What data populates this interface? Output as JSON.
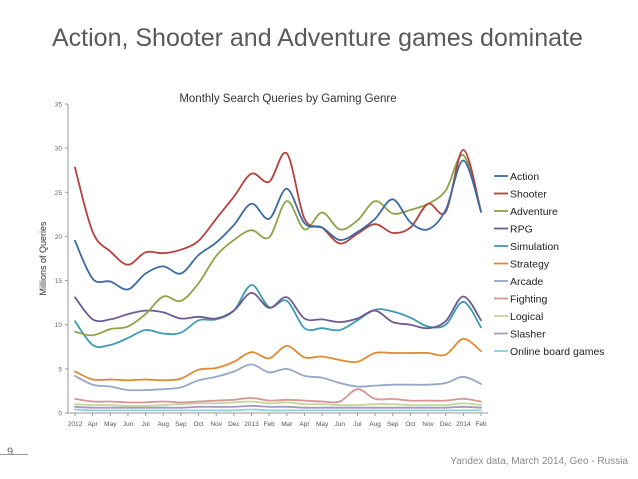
{
  "slide": {
    "title": "Action, Shooter and Adventure games dominate",
    "page_number": "9",
    "source_note": "Yandex data, March 2014, Geo - Russia"
  },
  "chart_data": {
    "type": "line",
    "title": "Monthly Search Queries by Gaming Genre",
    "xlabel": "",
    "ylabel": "Millions of Queries",
    "ylim": [
      0,
      35
    ],
    "yticks": [
      0,
      5,
      10,
      15,
      20,
      25,
      30,
      35
    ],
    "grid": false,
    "legend_position": "right",
    "x_tick_labels": [
      "2012",
      "Apr",
      "May",
      "Jun",
      "Jul",
      "Aug",
      "Sep",
      "Oct",
      "Nov",
      "Dec",
      "2013",
      "Feb",
      "Mar",
      "Apr",
      "May",
      "Jun",
      "Jul",
      "Aug",
      "Sep",
      "Oct",
      "Nov",
      "Dec",
      "2014",
      "Feb"
    ],
    "series": [
      {
        "name": "Action",
        "color": "#3a6ba3",
        "values": [
          19.5,
          15.2,
          14.9,
          14.0,
          15.8,
          16.6,
          15.8,
          17.9,
          19.3,
          21.3,
          23.7,
          22.0,
          25.4,
          21.5,
          21.0,
          19.6,
          20.5,
          22.0,
          24.2,
          21.6,
          20.8,
          23.0,
          28.6,
          22.8
        ]
      },
      {
        "name": "Shooter",
        "color": "#b8403c",
        "values": [
          27.8,
          20.5,
          18.3,
          16.8,
          18.2,
          18.1,
          18.5,
          19.5,
          22.0,
          24.5,
          27.1,
          26.2,
          29.4,
          22.0,
          21.0,
          19.2,
          20.3,
          21.4,
          20.4,
          21.0,
          23.7,
          22.8,
          29.8,
          22.8
        ]
      },
      {
        "name": "Adventure",
        "color": "#8ea44a",
        "values": [
          9.2,
          8.8,
          9.5,
          9.8,
          11.2,
          13.2,
          12.7,
          14.7,
          17.8,
          19.6,
          20.7,
          19.9,
          24.0,
          20.8,
          22.7,
          20.8,
          21.8,
          24.0,
          22.6,
          23.0,
          23.7,
          25.2,
          29.2,
          22.8
        ]
      },
      {
        "name": "RPG",
        "color": "#6e5a93",
        "values": [
          13.1,
          10.6,
          10.6,
          11.2,
          11.6,
          11.4,
          10.7,
          10.9,
          10.7,
          11.6,
          13.6,
          11.9,
          13.1,
          10.7,
          10.6,
          10.3,
          10.7,
          11.6,
          10.3,
          10.0,
          9.6,
          10.4,
          13.2,
          10.5
        ]
      },
      {
        "name": "Simulation",
        "color": "#3f9bb0",
        "values": [
          10.4,
          7.7,
          7.7,
          8.5,
          9.4,
          9.0,
          9.1,
          10.5,
          10.6,
          11.6,
          14.5,
          12.0,
          12.7,
          9.6,
          9.6,
          9.4,
          10.5,
          11.7,
          11.5,
          10.8,
          9.8,
          10.0,
          12.6,
          9.7
        ]
      },
      {
        "name": "Strategy",
        "color": "#de8b2f",
        "values": [
          4.7,
          3.8,
          3.8,
          3.7,
          3.8,
          3.7,
          3.9,
          4.9,
          5.1,
          5.8,
          6.9,
          6.2,
          7.6,
          6.3,
          6.4,
          6.0,
          5.8,
          6.8,
          6.8,
          6.8,
          6.8,
          6.6,
          8.4,
          7.0
        ]
      },
      {
        "name": "Arcade",
        "color": "#98a6c7",
        "values": [
          4.2,
          3.2,
          3.0,
          2.6,
          2.6,
          2.7,
          2.9,
          3.7,
          4.1,
          4.7,
          5.5,
          4.6,
          5.0,
          4.2,
          4.0,
          3.4,
          3.0,
          3.1,
          3.2,
          3.2,
          3.2,
          3.4,
          4.1,
          3.3
        ]
      },
      {
        "name": "Fighting",
        "color": "#d99594",
        "values": [
          1.6,
          1.3,
          1.3,
          1.2,
          1.2,
          1.3,
          1.2,
          1.3,
          1.4,
          1.5,
          1.7,
          1.4,
          1.5,
          1.4,
          1.3,
          1.3,
          2.7,
          1.6,
          1.6,
          1.4,
          1.4,
          1.4,
          1.6,
          1.3
        ]
      },
      {
        "name": "Logical",
        "color": "#c3d69b",
        "values": [
          1.0,
          0.9,
          0.9,
          0.8,
          0.8,
          0.9,
          1.0,
          1.1,
          1.1,
          1.2,
          1.3,
          1.1,
          1.2,
          1.0,
          1.0,
          0.9,
          0.9,
          1.0,
          1.0,
          0.9,
          0.9,
          0.9,
          1.1,
          0.9
        ]
      },
      {
        "name": "Slasher",
        "color": "#a498bd",
        "values": [
          0.7,
          0.6,
          0.6,
          0.6,
          0.6,
          0.6,
          0.6,
          0.7,
          0.7,
          0.7,
          0.8,
          0.7,
          0.7,
          0.6,
          0.6,
          0.6,
          0.6,
          0.6,
          0.6,
          0.6,
          0.6,
          0.6,
          0.7,
          0.6
        ]
      },
      {
        "name": "Online board games",
        "color": "#8ed0df",
        "values": [
          0.4,
          0.3,
          0.3,
          0.3,
          0.3,
          0.3,
          0.3,
          0.3,
          0.3,
          0.3,
          0.4,
          0.3,
          0.3,
          0.3,
          0.3,
          0.3,
          0.3,
          0.3,
          0.3,
          0.3,
          0.3,
          0.3,
          0.3,
          0.3
        ]
      }
    ]
  }
}
